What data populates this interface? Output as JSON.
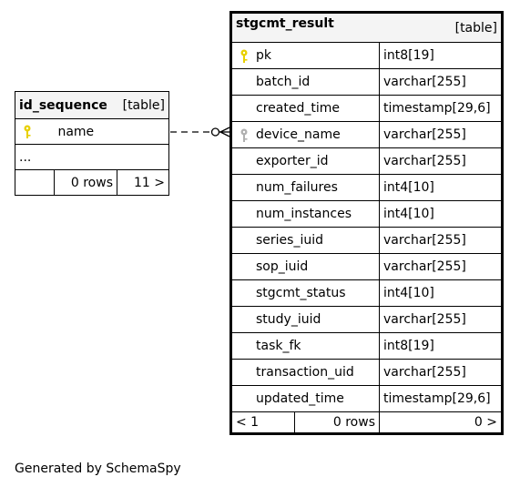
{
  "id_sequence": {
    "name": "id_sequence",
    "type": "[table]",
    "columns": [
      {
        "name": "name",
        "key": "primary"
      }
    ],
    "ellipsis": "...",
    "footer": {
      "left": "",
      "middle": "0 rows",
      "right": "11 >"
    }
  },
  "stgcmt_result": {
    "name": "stgcmt_result",
    "type": "[table]",
    "columns": [
      {
        "name": "pk",
        "type": "int8[19]",
        "key": "primary"
      },
      {
        "name": "batch_id",
        "type": "varchar[255]",
        "key": ""
      },
      {
        "name": "created_time",
        "type": "timestamp[29,6]",
        "key": ""
      },
      {
        "name": "device_name",
        "type": "varchar[255]",
        "key": "foreign"
      },
      {
        "name": "exporter_id",
        "type": "varchar[255]",
        "key": ""
      },
      {
        "name": "num_failures",
        "type": "int4[10]",
        "key": ""
      },
      {
        "name": "num_instances",
        "type": "int4[10]",
        "key": ""
      },
      {
        "name": "series_iuid",
        "type": "varchar[255]",
        "key": ""
      },
      {
        "name": "sop_iuid",
        "type": "varchar[255]",
        "key": ""
      },
      {
        "name": "stgcmt_status",
        "type": "int4[10]",
        "key": ""
      },
      {
        "name": "study_iuid",
        "type": "varchar[255]",
        "key": ""
      },
      {
        "name": "task_fk",
        "type": "int8[19]",
        "key": ""
      },
      {
        "name": "transaction_uid",
        "type": "varchar[255]",
        "key": ""
      },
      {
        "name": "updated_time",
        "type": "timestamp[29,6]",
        "key": ""
      }
    ],
    "footer": {
      "left": "< 1",
      "middle": "0 rows",
      "right": "0 >"
    }
  },
  "caption": "Generated by SchemaSpy",
  "colors": {
    "primary_key": "#e8d000",
    "foreign_key": "#b0b0b0",
    "header_bg": "#f4f4f4"
  },
  "icons": {
    "primary_key": "key-icon",
    "foreign_key": "key-icon"
  }
}
